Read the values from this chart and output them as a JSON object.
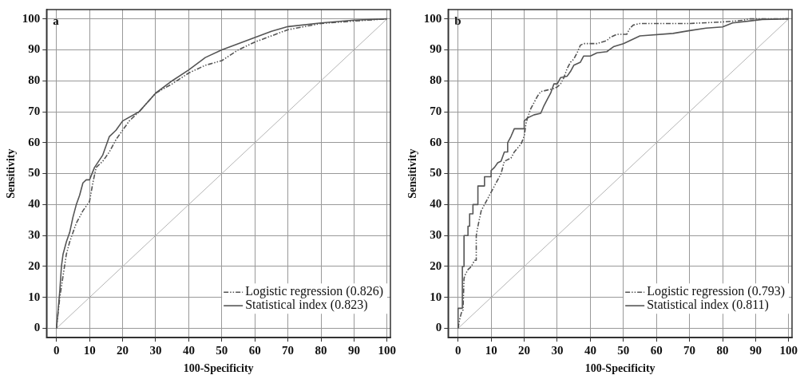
{
  "chart_data": [
    {
      "type": "line",
      "xlabel": "100-Specificity",
      "ylabel": "Sensitivity",
      "annotations": [
        "a"
      ],
      "xlim": [
        -3,
        101
      ],
      "ylim": [
        -3,
        103
      ],
      "xticks": [
        0,
        10,
        20,
        30,
        40,
        50,
        60,
        70,
        80,
        90,
        100
      ],
      "yticks": [
        0,
        10,
        20,
        30,
        40,
        50,
        60,
        70,
        80,
        90,
        100
      ],
      "grid": true,
      "legend": "bottom right",
      "marker": "none",
      "series": [
        {
          "name": "Logistic regression (0.826)",
          "color": "#555555",
          "line_style": "dashed",
          "x": [
            0,
            1,
            2,
            3,
            4,
            6,
            8,
            10,
            11,
            12,
            14,
            16,
            18,
            20,
            22,
            25,
            30,
            35,
            40,
            45,
            50,
            55,
            60,
            70,
            80,
            90,
            100
          ],
          "values": [
            0,
            10,
            17,
            24,
            28,
            34,
            38,
            41,
            47,
            52,
            54,
            57,
            61,
            64,
            67,
            70,
            76,
            79,
            82.5,
            85,
            86.5,
            90,
            92.5,
            96.5,
            98.5,
            99.3,
            100
          ]
        },
        {
          "name": "Statistical index (0.823)",
          "color": "#555555",
          "line_style": "solid",
          "x": [
            0,
            0.5,
            1,
            1.5,
            2,
            3,
            4,
            5,
            6,
            7,
            8,
            9,
            10,
            11.5,
            14,
            16,
            18,
            20,
            25,
            30,
            35,
            40,
            45,
            50,
            55,
            60,
            65,
            70,
            80,
            90,
            100
          ],
          "values": [
            0,
            6,
            12,
            20,
            24,
            28,
            31,
            36,
            40,
            43,
            47,
            48,
            48,
            52,
            56,
            62,
            64,
            67,
            70,
            76,
            80,
            83.5,
            87.5,
            90,
            92,
            94,
            96,
            97.5,
            98.7,
            99.6,
            100
          ]
        },
        {
          "color": "#b4b4b4",
          "line_style": "solid",
          "x": [
            0,
            100
          ],
          "values": [
            0,
            100
          ]
        }
      ]
    },
    {
      "type": "line",
      "xlabel": "100-Specificity",
      "ylabel": "Sensitivity",
      "annotations": [
        "b"
      ],
      "xlim": [
        -3,
        101
      ],
      "ylim": [
        -3,
        103
      ],
      "xticks": [
        0,
        10,
        20,
        30,
        40,
        50,
        60,
        70,
        80,
        90,
        100
      ],
      "yticks": [
        0,
        10,
        20,
        30,
        40,
        50,
        60,
        70,
        80,
        90,
        100
      ],
      "grid": true,
      "legend": "bottom right",
      "marker": "none",
      "series": [
        {
          "name": "Logistic regression (0.793)",
          "color": "#555555",
          "line_style": "dashed",
          "x": [
            0,
            0.5,
            1,
            1.5,
            1.8,
            2,
            3,
            4,
            5,
            5.5,
            5.5,
            6,
            7,
            8,
            9,
            10,
            11,
            12,
            13,
            14,
            16,
            17,
            19,
            20,
            20.5,
            21,
            22,
            23,
            24,
            25,
            27,
            29,
            30,
            31,
            32,
            33,
            34,
            35,
            36,
            37,
            38,
            42,
            45,
            46,
            48,
            51,
            52,
            53,
            55,
            70,
            80,
            86,
            88,
            100
          ],
          "values": [
            0,
            3,
            5,
            6,
            16,
            17,
            19,
            20,
            22,
            22,
            30,
            33,
            38,
            40,
            42,
            44,
            46,
            48,
            50,
            54,
            55,
            57,
            59.5,
            62,
            66,
            68,
            71,
            73,
            75,
            76.5,
            77,
            77.5,
            78,
            79,
            81,
            84,
            86,
            87,
            89,
            91.5,
            92,
            92,
            93,
            94,
            95,
            95,
            97,
            98,
            98.5,
            98.5,
            99,
            99.5,
            100,
            100
          ]
        },
        {
          "name": "Statistical index (0.811)",
          "color": "#555555",
          "line_style": "solid",
          "x": [
            0,
            0,
            1.3,
            1.3,
            1.8,
            1.8,
            3,
            3,
            3.5,
            3.5,
            4.5,
            4.5,
            6,
            6,
            8,
            8,
            10,
            10,
            11,
            12,
            13,
            14,
            15,
            15,
            16,
            17,
            20,
            20,
            21,
            23,
            25,
            26,
            27,
            28,
            29,
            30,
            31,
            33,
            34,
            35,
            37,
            38,
            40,
            42,
            45,
            47,
            50,
            55,
            65,
            70,
            75,
            80,
            83,
            88,
            92,
            100
          ],
          "values": [
            0,
            6.5,
            6.5,
            20,
            20,
            30,
            30,
            33,
            33,
            37,
            37,
            40,
            40,
            46,
            46,
            49,
            49,
            51,
            52,
            53.5,
            54,
            57,
            57,
            60,
            62,
            64.5,
            64.5,
            67,
            68,
            69,
            69.5,
            72,
            74,
            76,
            79,
            79,
            81,
            81.5,
            83,
            85,
            86,
            88,
            88,
            89,
            89.4,
            91,
            92,
            94.5,
            95.3,
            96.2,
            97,
            97.4,
            98.7,
            99.3,
            99.8,
            100
          ]
        },
        {
          "color": "#b4b4b4",
          "line_style": "solid",
          "x": [
            0,
            100
          ],
          "values": [
            0,
            100
          ]
        }
      ]
    }
  ]
}
